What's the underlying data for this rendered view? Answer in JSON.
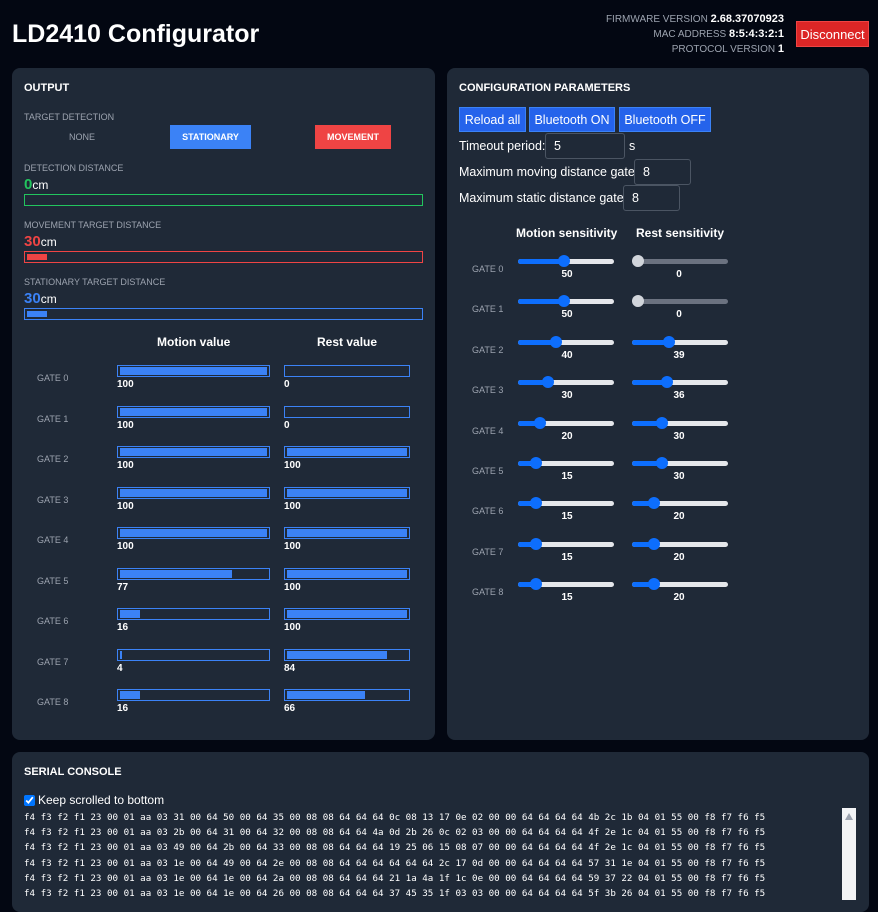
{
  "header": {
    "title": "LD2410 Configurator",
    "firmware_label": "FIRMWARE VERSION",
    "firmware": "2.68.37070923",
    "mac_label": "MAC ADDRESS",
    "mac": "8:5:4:3:2:1",
    "protocol_label": "PROTOCOL VERSION",
    "protocol": "1",
    "disconnect": "Disconnect"
  },
  "output": {
    "title": "OUTPUT",
    "target_detection_label": "TARGET DETECTION",
    "states": [
      "NONE",
      "STATIONARY",
      "MOVEMENT"
    ],
    "detection_distance": {
      "label": "DETECTION DISTANCE",
      "value": "0",
      "unit": "cm",
      "fill": 0,
      "color": "#22c55e"
    },
    "movement_distance": {
      "label": "MOVEMENT TARGET DISTANCE",
      "value": "30",
      "unit": "cm",
      "fill": 0.05,
      "color": "#ef4444"
    },
    "stationary_distance": {
      "label": "STATIONARY TARGET DISTANCE",
      "value": "30",
      "unit": "cm",
      "fill": 0.05,
      "color": "#3b82f6"
    },
    "motion_header": "Motion value",
    "rest_header": "Rest value",
    "gates": [
      {
        "label": "GATE 0",
        "motion": "100",
        "rest": "0"
      },
      {
        "label": "GATE 1",
        "motion": "100",
        "rest": "0"
      },
      {
        "label": "GATE 2",
        "motion": "100",
        "rest": "100"
      },
      {
        "label": "GATE 3",
        "motion": "100",
        "rest": "100"
      },
      {
        "label": "GATE 4",
        "motion": "100",
        "rest": "100"
      },
      {
        "label": "GATE 5",
        "motion": "77",
        "rest": "100"
      },
      {
        "label": "GATE 6",
        "motion": "16",
        "rest": "100"
      },
      {
        "label": "GATE 7",
        "motion": "4",
        "rest": "84"
      },
      {
        "label": "GATE 8",
        "motion": "16",
        "rest": "66"
      }
    ]
  },
  "config": {
    "title": "CONFIGURATION PARAMETERS",
    "reload": "Reload all",
    "bt_on": "Bluetooth ON",
    "bt_off": "Bluetooth OFF",
    "timeout_label": "Timeout period:",
    "timeout": "5",
    "timeout_unit": "s",
    "max_moving_label": "Maximum moving distance gate:",
    "max_moving": "8",
    "max_static_label": "Maximum static distance gate:",
    "max_static": "8",
    "motion_header": "Motion sensitivity",
    "rest_header": "Rest sensitivity",
    "gates": [
      {
        "label": "GATE 0",
        "motion": "50",
        "rest": "0",
        "rest_disabled": true
      },
      {
        "label": "GATE 1",
        "motion": "50",
        "rest": "0",
        "rest_disabled": true
      },
      {
        "label": "GATE 2",
        "motion": "40",
        "rest": "39"
      },
      {
        "label": "GATE 3",
        "motion": "30",
        "rest": "36"
      },
      {
        "label": "GATE 4",
        "motion": "20",
        "rest": "30"
      },
      {
        "label": "GATE 5",
        "motion": "15",
        "rest": "30"
      },
      {
        "label": "GATE 6",
        "motion": "15",
        "rest": "20"
      },
      {
        "label": "GATE 7",
        "motion": "15",
        "rest": "20"
      },
      {
        "label": "GATE 8",
        "motion": "15",
        "rest": "20"
      }
    ]
  },
  "console": {
    "title": "SERIAL CONSOLE",
    "keep_scrolled": "Keep scrolled to bottom",
    "keep_checked": true,
    "lines": [
      "f4 f3 f2 f1 23 00 01 aa 03 31 00 64 50 00 64 35 00 08 08 64 64 64 0c 08 13 17 0e 02 00 00 64 64 64 64 4b 2c 1b 04 01 55 00 f8 f7 f6 f5",
      "f4 f3 f2 f1 23 00 01 aa 03 2b 00 64 31 00 64 32 00 08 08 64 64 4a 0d 2b 26 0c 02 03 00 00 64 64 64 64 4f 2e 1c 04 01 55 00 f8 f7 f6 f5",
      "f4 f3 f2 f1 23 00 01 aa 03 49 00 64 2b 00 64 33 00 08 08 64 64 64 19 25 06 15 08 07 00 00 64 64 64 64 4f 2e 1c 04 01 55 00 f8 f7 f6 f5",
      "f4 f3 f2 f1 23 00 01 aa 03 1e 00 64 49 00 64 2e 00 08 08 64 64 64 64 64 64 2c 17 0d 00 00 64 64 64 64 57 31 1e 04 01 55 00 f8 f7 f6 f5",
      "f4 f3 f2 f1 23 00 01 aa 03 1e 00 64 1e 00 64 2a 00 08 08 64 64 64 21 1a 4a 1f 1c 0e 00 00 64 64 64 64 59 37 22 04 01 55 00 f8 f7 f6 f5",
      "f4 f3 f2 f1 23 00 01 aa 03 1e 00 64 1e 00 64 26 00 08 08 64 64 64 37 45 35 1f 03 03 00 00 64 64 64 64 5f 3b 26 04 01 55 00 f8 f7 f6 f5"
    ]
  }
}
